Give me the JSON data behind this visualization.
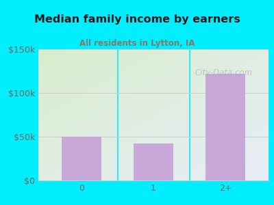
{
  "title": "Median family income by earners",
  "subtitle": "All residents in Lytton, IA",
  "categories": [
    "0",
    "1",
    "2+"
  ],
  "values": [
    50000,
    42000,
    122000
  ],
  "ylim": [
    0,
    150000
  ],
  "yticks": [
    0,
    50000,
    100000,
    150000
  ],
  "ytick_labels": [
    "$0",
    "$50k",
    "$100k",
    "$150k"
  ],
  "bar_color": "#c8a8d8",
  "bg_outer": "#00eeff",
  "bg_plot_topleft": "#d8edcc",
  "bg_plot_bottomright": "#e8eef8",
  "title_color": "#1a1a1a",
  "subtitle_color": "#887766",
  "axis_label_color": "#776655",
  "grid_color": "#cccccc",
  "watermark": "City-Data.com",
  "divider_color": "#00eeff"
}
